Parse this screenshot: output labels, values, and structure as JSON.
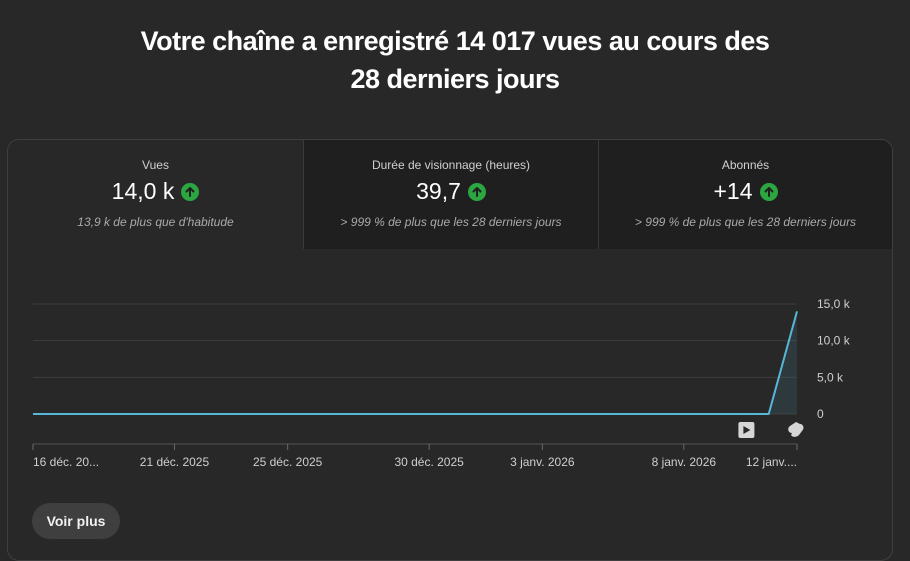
{
  "headline": {
    "line1": "Votre chaîne a enregistré 14 017 vues au cours des",
    "line2": "28 derniers jours"
  },
  "metrics": [
    {
      "label": "Vues",
      "value": "14,0 k",
      "note": "13,9 k de plus que d'habitude",
      "trend_icon": "arrow-up-icon",
      "selected": true
    },
    {
      "label": "Durée de visionnage (heures)",
      "value": "39,7",
      "note": "> 999 % de plus que les 28 derniers jours",
      "trend_icon": "arrow-up-icon",
      "selected": false
    },
    {
      "label": "Abonnés",
      "value": "+14",
      "note": "> 999 % de plus que les 28 derniers jours",
      "trend_icon": "arrow-up-icon",
      "selected": false
    }
  ],
  "chart_data": {
    "type": "line",
    "x_tick_labels": [
      "16 déc. 20...",
      "21 déc. 2025",
      "25 déc. 2025",
      "30 déc. 2025",
      "3 janv. 2026",
      "8 janv. 2026",
      "12 janv...."
    ],
    "y_tick_labels": [
      "15,0 k",
      "10,0 k",
      "5,0 k",
      "0"
    ],
    "y_ticks": [
      15000,
      10000,
      5000,
      0
    ],
    "ylim": [
      0,
      15000
    ],
    "n_days": 28,
    "values": [
      0,
      0,
      0,
      0,
      0,
      0,
      0,
      0,
      0,
      0,
      0,
      0,
      0,
      0,
      0,
      0,
      0,
      0,
      0,
      0,
      0,
      0,
      0,
      0,
      0,
      0,
      0,
      14000
    ],
    "line_color": "#57b7d8",
    "grid": true,
    "markers": [
      "video-play-icon",
      "shorts-icon"
    ]
  },
  "actions": {
    "see_more": "Voir plus"
  }
}
